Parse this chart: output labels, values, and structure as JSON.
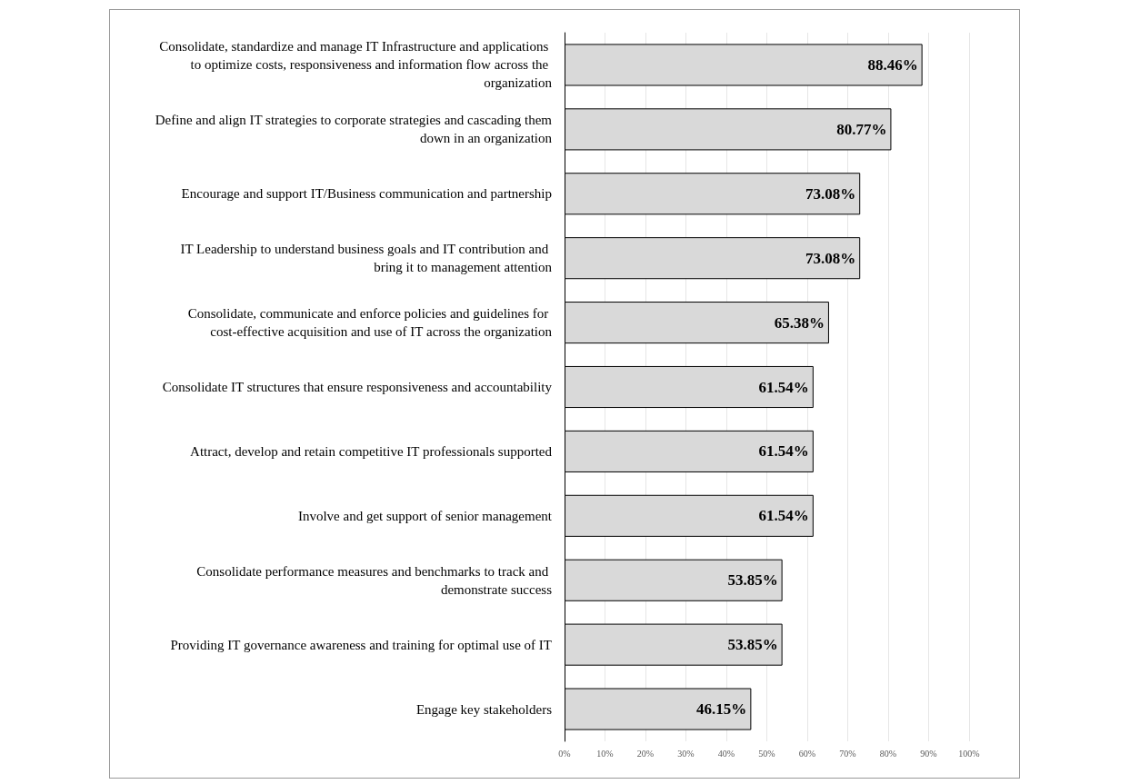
{
  "chart_data": {
    "type": "bar",
    "orientation": "horizontal",
    "categories": [
      "Consolidate, standardize and manage IT Infrastructure and applications to optimize costs, responsiveness and information flow across the organization",
      "Define and align IT strategies to corporate strategies and cascading them down in an organization",
      "Encourage and support IT/Business communication and partnership",
      "IT Leadership to understand business goals and IT contribution and bring it to management attention",
      "Consolidate, communicate and enforce policies and guidelines for cost-effective acquisition and use of IT across the organization",
      "Consolidate IT structures that ensure responsiveness and accountability",
      "Attract, develop and retain competitive IT professionals supported",
      "Involve and get support of senior management",
      "Consolidate performance measures and benchmarks to track and demonstrate success",
      "Providing IT governance awareness and training for optimal use of IT",
      "Engage key stakeholders"
    ],
    "values": [
      88.46,
      80.77,
      73.08,
      73.08,
      65.38,
      61.54,
      61.54,
      61.54,
      53.85,
      53.85,
      46.15
    ],
    "value_labels": [
      "88.46%",
      "80.77%",
      "73.08%",
      "73.08%",
      "65.38%",
      "61.54%",
      "61.54%",
      "61.54%",
      "53.85%",
      "53.85%",
      "46.15%"
    ],
    "color": "#d9d9d9",
    "xlim": [
      0,
      100
    ],
    "xticks": [
      {
        "value": 0,
        "label": "0%"
      },
      {
        "value": 10,
        "label": "10%"
      },
      {
        "value": 20,
        "label": "20%"
      },
      {
        "value": 30,
        "label": "30%"
      },
      {
        "value": 40,
        "label": "40%"
      },
      {
        "value": 50,
        "label": "50%"
      },
      {
        "value": 60,
        "label": "60%"
      },
      {
        "value": 70,
        "label": "70%"
      },
      {
        "value": 80,
        "label": "80%"
      },
      {
        "value": 90,
        "label": "90%"
      },
      {
        "value": 100,
        "label": "100%"
      }
    ],
    "grid": "x"
  }
}
